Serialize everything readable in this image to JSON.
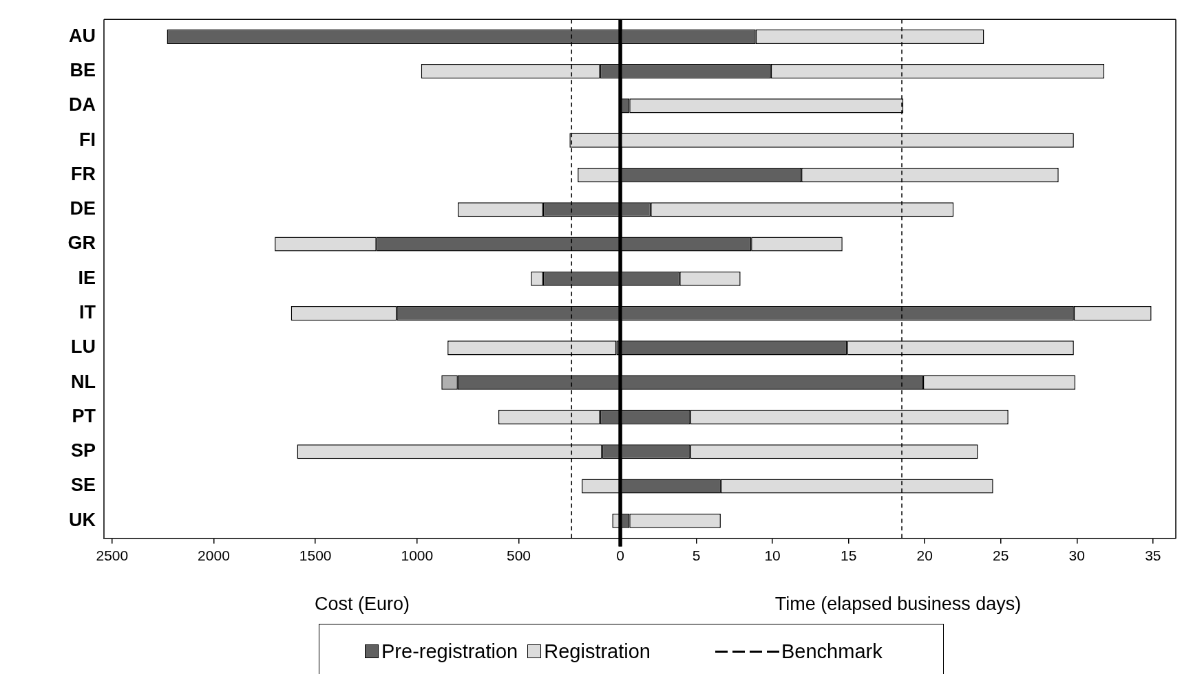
{
  "chart_data": [
    {
      "type": "bar",
      "orientation": "horizontal",
      "stacked": true,
      "xlabel": "Cost (Euro)",
      "categories": [
        "AU",
        "BE",
        "DA",
        "FI",
        "FR",
        "DE",
        "GR",
        "IE",
        "IT",
        "LU",
        "NL",
        "PT",
        "SP",
        "SE",
        "UK"
      ],
      "series": [
        {
          "name": "Pre-registration",
          "color": "#606060",
          "values": [
            2230,
            100,
            0,
            0,
            0,
            380,
            1200,
            380,
            1100,
            20,
            800,
            100,
            90,
            0,
            0
          ]
        },
        {
          "name": "Registration",
          "color": "#dcdcdc",
          "colors": [
            "#dcdcdc",
            "#dcdcdc",
            "#dcdcdc",
            "#dcdcdc",
            "#dcdcdc",
            "#dcdcdc",
            "#dcdcdc",
            "#dcdcdc",
            "#dcdcdc",
            "#dcdcdc",
            "#b0b0b0",
            "#dcdcdc",
            "#dcdcdc",
            "#dcdcdc",
            "#dcdcdc"
          ],
          "values": [
            0,
            880,
            0,
            250,
            210,
            420,
            500,
            60,
            520,
            830,
            80,
            500,
            1500,
            190,
            40
          ]
        }
      ],
      "xlim": [
        2540,
        0
      ],
      "xticks": [
        2500,
        2000,
        1500,
        1000,
        500,
        0
      ],
      "ref_lines": [
        {
          "axis": "x",
          "value": 240,
          "label": "Benchmark",
          "line_style": "dashed",
          "color": "#000000"
        }
      ],
      "grid": false,
      "legend": "bottom"
    },
    {
      "type": "bar",
      "orientation": "horizontal",
      "stacked": true,
      "xlabel": "Time (elapsed business days)",
      "categories": [
        "AU",
        "BE",
        "DA",
        "FI",
        "FR",
        "DE",
        "GR",
        "IE",
        "IT",
        "LU",
        "NL",
        "PT",
        "SP",
        "SE",
        "UK"
      ],
      "series": [
        {
          "name": "Pre-registration",
          "color": "#606060",
          "values": [
            8.9,
            9.9,
            0.6,
            0,
            11.9,
            2.0,
            8.6,
            3.9,
            29.8,
            14.9,
            19.9,
            4.6,
            4.6,
            6.6,
            0.6
          ]
        },
        {
          "name": "Registration",
          "color": "#dcdcdc",
          "values": [
            15.0,
            21.9,
            18.0,
            29.8,
            16.9,
            19.9,
            6.0,
            4.0,
            5.1,
            14.9,
            10.0,
            20.9,
            18.9,
            17.9,
            6.0
          ]
        }
      ],
      "xlim": [
        0,
        36.5
      ],
      "xticks": [
        {
          "value": 0,
          "label": null
        },
        5,
        10,
        15,
        20,
        25,
        30,
        35
      ],
      "ref_lines": [
        {
          "axis": "x",
          "value": 18.5,
          "line_style": "dashed",
          "color": "#000000"
        }
      ],
      "grid": false,
      "legend": "bottom",
      "tick_labels": "x"
    }
  ]
}
